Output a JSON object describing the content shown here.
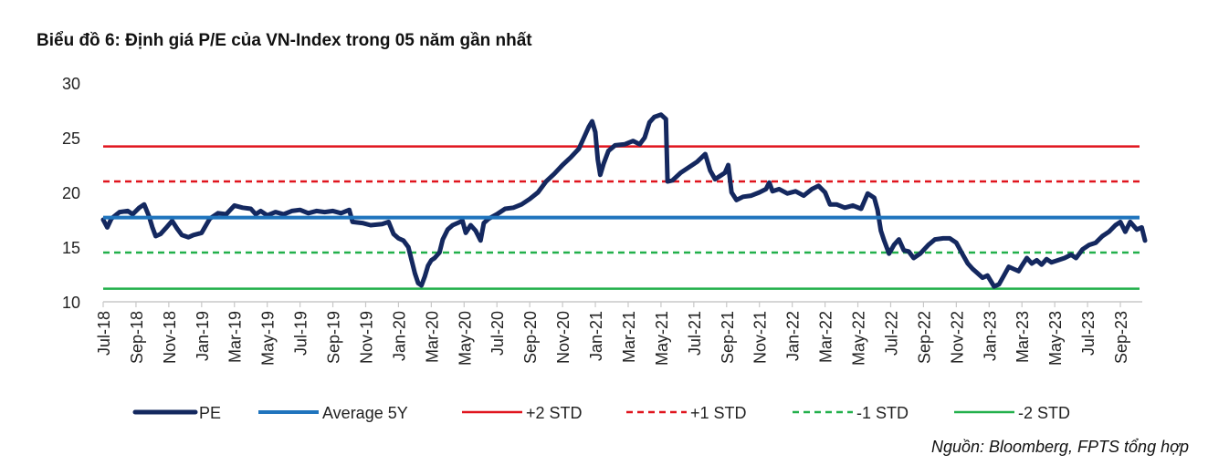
{
  "title": "Biểu đồ 6: Định giá P/E của VN-Index trong 05 năm gần nhất",
  "source": "Nguồn: Bloomberg, FPTS tổng hợp",
  "colors": {
    "pe": "#14285f",
    "average": "#1f74bd",
    "std_plus": "#e0141d",
    "std_minus": "#22b04b",
    "axis": "#c8c8c8"
  },
  "chart_data": {
    "type": "line",
    "title": "Biểu đồ 6: Định giá P/E của VN-Index trong 05 năm gần nhất",
    "xlabel": "",
    "ylabel": "",
    "ylim": [
      10,
      30
    ],
    "yticks": [
      "10",
      "15",
      "20",
      "25",
      "30"
    ],
    "grid": false,
    "legend_position": "bottom",
    "categories": [
      "Jul-18",
      "Sep-18",
      "Nov-18",
      "Jan-19",
      "Mar-19",
      "May-19",
      "Jul-19",
      "Sep-19",
      "Nov-19",
      "Jan-20",
      "Mar-20",
      "May-20",
      "Jul-20",
      "Sep-20",
      "Nov-20",
      "Jan-21",
      "Mar-21",
      "May-21",
      "Jul-21",
      "Sep-21",
      "Nov-21",
      "Jan-22",
      "Mar-22",
      "May-22",
      "Jul-22",
      "Sep-22",
      "Nov-22",
      "Jan-23",
      "Mar-23",
      "May-23",
      "Jul-23",
      "Sep-23"
    ],
    "series": [
      {
        "name": "PE",
        "style": "solid-thick",
        "points": [
          [
            0,
            17.5
          ],
          [
            0.25,
            16.8
          ],
          [
            0.5,
            17.6
          ],
          [
            1.0,
            18.2
          ],
          [
            1.5,
            18.3
          ],
          [
            1.8,
            18.0
          ],
          [
            2.2,
            18.6
          ],
          [
            2.5,
            18.9
          ],
          [
            2.8,
            17.8
          ],
          [
            3.0,
            16.8
          ],
          [
            3.2,
            16.0
          ],
          [
            3.5,
            16.2
          ],
          [
            3.8,
            16.7
          ],
          [
            4.2,
            17.4
          ],
          [
            4.5,
            16.7
          ],
          [
            4.8,
            16.1
          ],
          [
            5.2,
            15.9
          ],
          [
            5.5,
            16.1
          ],
          [
            6.0,
            16.3
          ],
          [
            6.5,
            17.6
          ],
          [
            7.0,
            18.1
          ],
          [
            7.5,
            18.0
          ],
          [
            8.0,
            18.8
          ],
          [
            8.5,
            18.6
          ],
          [
            9.0,
            18.5
          ],
          [
            9.3,
            18.0
          ],
          [
            9.6,
            18.3
          ],
          [
            10.0,
            17.9
          ],
          [
            10.5,
            18.2
          ],
          [
            11.0,
            18.0
          ],
          [
            11.5,
            18.3
          ],
          [
            12.0,
            18.4
          ],
          [
            12.5,
            18.1
          ],
          [
            13.0,
            18.3
          ],
          [
            13.5,
            18.2
          ],
          [
            14.0,
            18.3
          ],
          [
            14.5,
            18.1
          ],
          [
            15.0,
            18.4
          ],
          [
            15.2,
            17.3
          ],
          [
            15.8,
            17.2
          ],
          [
            16.3,
            17.0
          ],
          [
            17.0,
            17.1
          ],
          [
            17.4,
            17.3
          ],
          [
            17.7,
            16.2
          ],
          [
            18.0,
            15.8
          ],
          [
            18.3,
            15.6
          ],
          [
            18.6,
            15.0
          ],
          [
            18.8,
            13.8
          ],
          [
            19.0,
            12.6
          ],
          [
            19.2,
            11.7
          ],
          [
            19.4,
            11.5
          ],
          [
            19.6,
            12.3
          ],
          [
            19.8,
            13.3
          ],
          [
            20.0,
            13.8
          ],
          [
            20.2,
            14.0
          ],
          [
            20.5,
            14.5
          ],
          [
            20.7,
            15.7
          ],
          [
            21.0,
            16.6
          ],
          [
            21.3,
            17.0
          ],
          [
            21.6,
            17.2
          ],
          [
            21.9,
            17.4
          ],
          [
            22.1,
            16.3
          ],
          [
            22.4,
            17.0
          ],
          [
            22.7,
            16.5
          ],
          [
            23.0,
            15.6
          ],
          [
            23.2,
            17.2
          ],
          [
            23.5,
            17.6
          ],
          [
            24.0,
            18.0
          ],
          [
            24.5,
            18.5
          ],
          [
            25.0,
            18.6
          ],
          [
            25.5,
            18.9
          ],
          [
            26.0,
            19.4
          ],
          [
            26.5,
            20.0
          ],
          [
            27.0,
            21.0
          ],
          [
            27.5,
            21.7
          ],
          [
            28.0,
            22.5
          ],
          [
            28.5,
            23.2
          ],
          [
            29.0,
            24.0
          ],
          [
            29.3,
            25.0
          ],
          [
            29.6,
            26.0
          ],
          [
            29.8,
            26.5
          ],
          [
            30.0,
            25.5
          ],
          [
            30.15,
            23.0
          ],
          [
            30.3,
            21.6
          ],
          [
            30.5,
            22.6
          ],
          [
            30.8,
            23.8
          ],
          [
            31.2,
            24.3
          ],
          [
            31.8,
            24.4
          ],
          [
            32.3,
            24.7
          ],
          [
            32.7,
            24.4
          ],
          [
            33.0,
            25.0
          ],
          [
            33.3,
            26.4
          ],
          [
            33.6,
            26.9
          ],
          [
            34.0,
            27.1
          ],
          [
            34.3,
            26.7
          ],
          [
            34.4,
            21.0
          ],
          [
            34.7,
            21.1
          ],
          [
            35.2,
            21.8
          ],
          [
            35.7,
            22.3
          ],
          [
            36.2,
            22.8
          ],
          [
            36.7,
            23.5
          ],
          [
            37.0,
            22.0
          ],
          [
            37.3,
            21.2
          ],
          [
            37.6,
            21.5
          ],
          [
            37.9,
            21.8
          ],
          [
            38.1,
            22.5
          ],
          [
            38.3,
            20.0
          ],
          [
            38.6,
            19.3
          ],
          [
            39.0,
            19.6
          ],
          [
            39.5,
            19.7
          ],
          [
            40.0,
            20.0
          ],
          [
            40.4,
            20.3
          ],
          [
            40.6,
            20.9
          ],
          [
            40.8,
            20.1
          ],
          [
            41.2,
            20.3
          ],
          [
            41.7,
            19.9
          ],
          [
            42.2,
            20.1
          ],
          [
            42.7,
            19.7
          ],
          [
            43.2,
            20.3
          ],
          [
            43.6,
            20.6
          ],
          [
            44.0,
            20.0
          ],
          [
            44.3,
            18.9
          ],
          [
            44.7,
            18.9
          ],
          [
            45.2,
            18.6
          ],
          [
            45.7,
            18.8
          ],
          [
            46.2,
            18.5
          ],
          [
            46.6,
            19.9
          ],
          [
            47.0,
            19.5
          ],
          [
            47.2,
            18.4
          ],
          [
            47.4,
            16.5
          ],
          [
            47.6,
            15.6
          ],
          [
            47.9,
            14.4
          ],
          [
            48.2,
            15.2
          ],
          [
            48.5,
            15.7
          ],
          [
            48.8,
            14.7
          ],
          [
            49.1,
            14.6
          ],
          [
            49.4,
            14.0
          ],
          [
            49.8,
            14.4
          ],
          [
            50.3,
            15.2
          ],
          [
            50.7,
            15.7
          ],
          [
            51.2,
            15.8
          ],
          [
            51.6,
            15.8
          ],
          [
            52.0,
            15.4
          ],
          [
            52.4,
            14.3
          ],
          [
            52.7,
            13.5
          ],
          [
            53.0,
            13.0
          ],
          [
            53.3,
            12.6
          ],
          [
            53.6,
            12.2
          ],
          [
            53.9,
            12.4
          ],
          [
            54.1,
            11.9
          ],
          [
            54.3,
            11.4
          ],
          [
            54.6,
            11.6
          ],
          [
            54.9,
            12.4
          ],
          [
            55.2,
            13.2
          ],
          [
            55.5,
            13.0
          ],
          [
            55.8,
            12.8
          ],
          [
            56.0,
            13.3
          ],
          [
            56.3,
            14.0
          ],
          [
            56.6,
            13.5
          ],
          [
            56.9,
            13.8
          ],
          [
            57.2,
            13.4
          ],
          [
            57.5,
            13.9
          ],
          [
            57.8,
            13.6
          ],
          [
            58.2,
            13.8
          ],
          [
            58.6,
            14.0
          ],
          [
            59.0,
            14.3
          ],
          [
            59.3,
            14.0
          ],
          [
            59.7,
            14.8
          ],
          [
            60.1,
            15.2
          ],
          [
            60.5,
            15.4
          ],
          [
            60.9,
            16.0
          ],
          [
            61.3,
            16.4
          ],
          [
            61.7,
            17.0
          ],
          [
            62.0,
            17.3
          ],
          [
            62.3,
            16.4
          ],
          [
            62.6,
            17.3
          ],
          [
            63.0,
            16.6
          ],
          [
            63.3,
            16.8
          ],
          [
            63.5,
            15.6
          ]
        ]
      },
      {
        "name": "Average 5Y",
        "style": "solid",
        "value": 17.7
      },
      {
        "name": "+2 STD",
        "style": "solid",
        "value": 24.2
      },
      {
        "name": "+1 STD",
        "style": "dashed",
        "value": 21.0
      },
      {
        "name": "-1 STD",
        "style": "dashed",
        "value": 14.5
      },
      {
        "name": "-2 STD",
        "style": "solid",
        "value": 11.2
      }
    ]
  }
}
